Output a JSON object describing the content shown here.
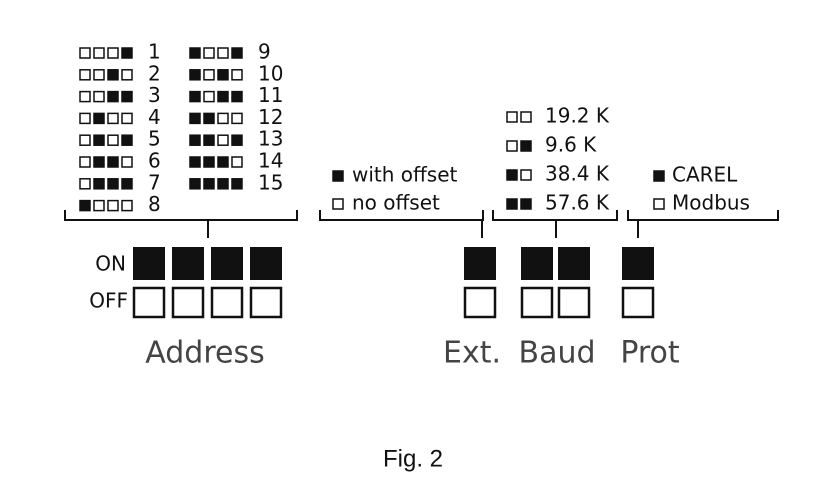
{
  "addresses": [
    "1",
    "2",
    "3",
    "4",
    "5",
    "6",
    "7",
    "8",
    "9",
    "10",
    "11",
    "12",
    "13",
    "14",
    "15"
  ],
  "offset": [
    "with offset",
    "no offset"
  ],
  "baud": [
    "19.2 K",
    "9.6 K",
    "38.4 K",
    "57.6 K"
  ],
  "protocol": [
    "CAREL",
    "Modbus"
  ],
  "switch": {
    "on": "ON",
    "off": "OFF"
  },
  "groups": {
    "address": "Address",
    "ext": "Ext.",
    "baud": "Baud",
    "prot": "Prot"
  },
  "caption": "Fig. 2"
}
